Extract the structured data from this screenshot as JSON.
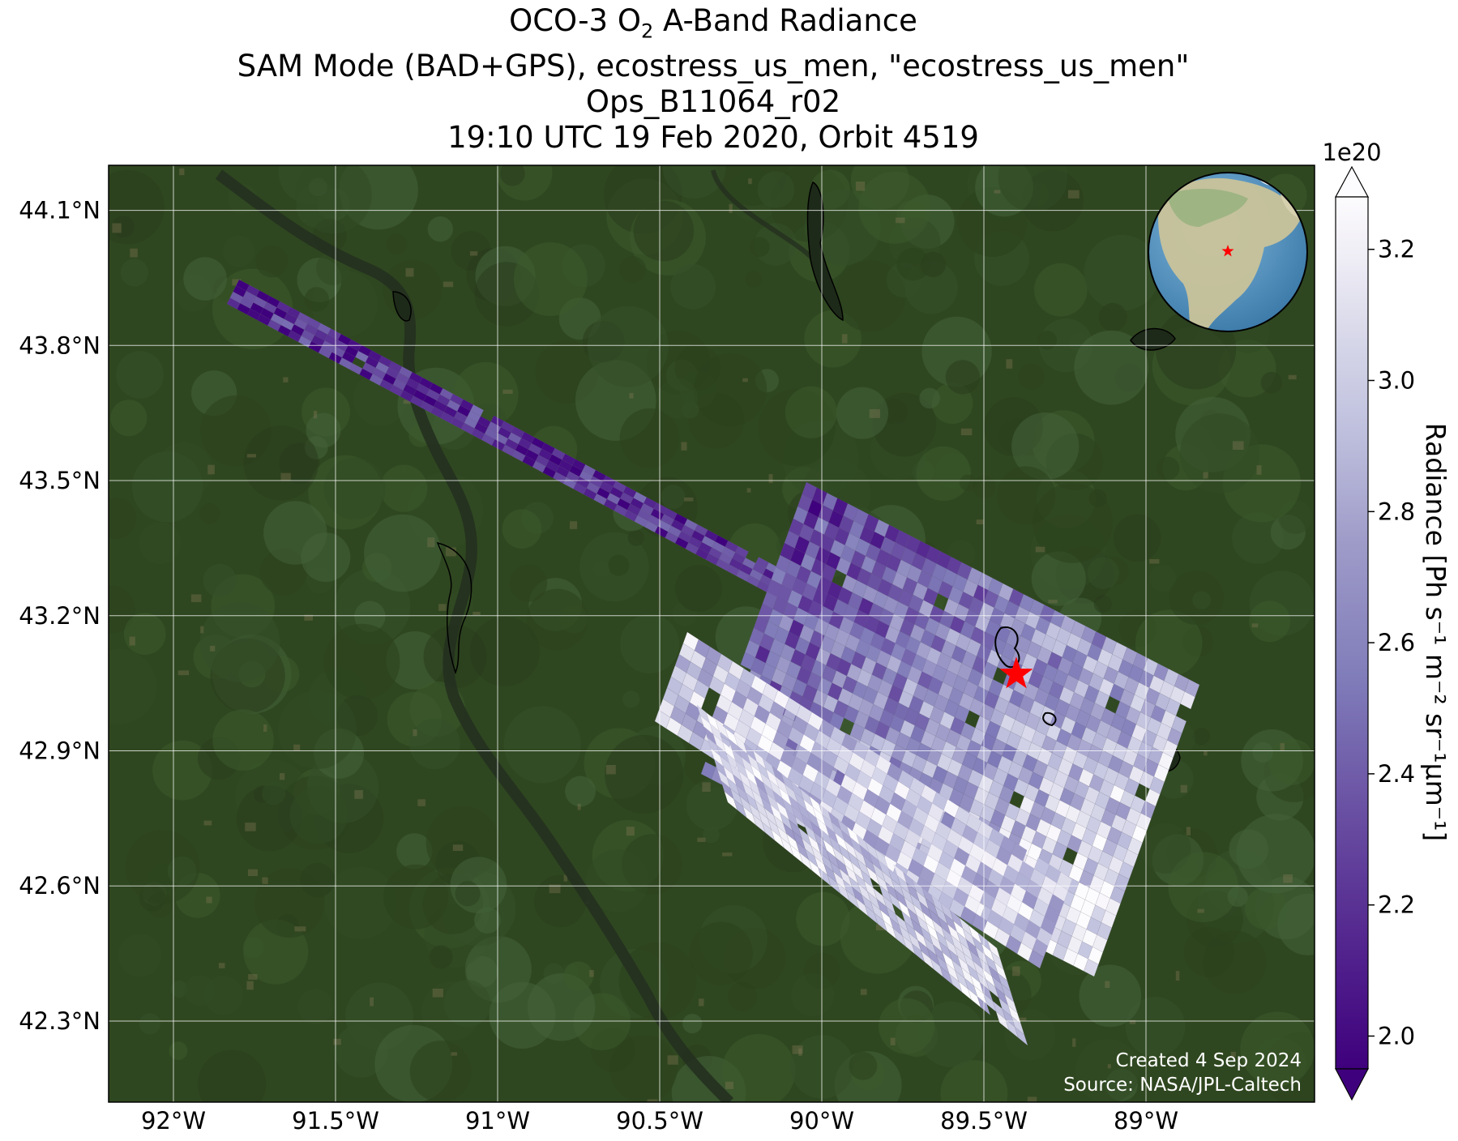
{
  "title": {
    "line1_prefix": "OCO-3 O",
    "line1_sub": "2",
    "line1_suffix": " A-Band Radiance",
    "line2": "SAM Mode (BAD+GPS), ecostress_us_men, \"ecostress_us_men\"",
    "line3": "Ops_B11064_r02",
    "line4": "19:10 UTC 19 Feb 2020, Orbit 4519"
  },
  "map": {
    "lon_range": [
      -92.2,
      -88.48
    ],
    "lat_range": [
      42.12,
      44.2
    ],
    "lon_ticks": [
      -92.0,
      -91.5,
      -91.0,
      -90.5,
      -90.0,
      -89.5,
      -89.0
    ],
    "lon_tick_labels": [
      "92°W",
      "91.5°W",
      "91°W",
      "90.5°W",
      "90°W",
      "89.5°W",
      "89°W"
    ],
    "lat_ticks": [
      44.1,
      43.8,
      43.5,
      43.2,
      42.9,
      42.6,
      42.3
    ],
    "lat_tick_labels": [
      "44.1°N",
      "43.8°N",
      "43.5°N",
      "43.2°N",
      "42.9°N",
      "42.6°N",
      "42.3°N"
    ],
    "grid": true,
    "basemap": "satellite imagery (green farmland)",
    "target_marker": {
      "lon": -89.4,
      "lat": 43.07,
      "symbol": "red star"
    },
    "credit_line1": "Created 4 Sep 2024",
    "credit_line2": "Source: NASA/JPL-Caltech"
  },
  "inset_globe": {
    "position": "top-right",
    "marker": "red star over North America"
  },
  "colorbar": {
    "label": "Radiance [Ph s⁻¹ m⁻² sr⁻¹μm⁻¹]",
    "scale_note": "1e20",
    "colormap": "Purples_r",
    "vmin": 1.95,
    "vmax": 3.28,
    "ticks": [
      2.0,
      2.2,
      2.4,
      2.6,
      2.8,
      3.0,
      3.2
    ],
    "tick_labels": [
      "2.0",
      "2.2",
      "2.4",
      "2.6",
      "2.8",
      "3.0",
      "3.2"
    ],
    "extend": "both",
    "color_low": "#3f007d",
    "color_high": "#fcfbfd"
  },
  "colors": {
    "land_dark": "#2a3f1c",
    "land_mid": "#3b5427",
    "river": "#2e3b28",
    "target_star": "#ff0000"
  }
}
